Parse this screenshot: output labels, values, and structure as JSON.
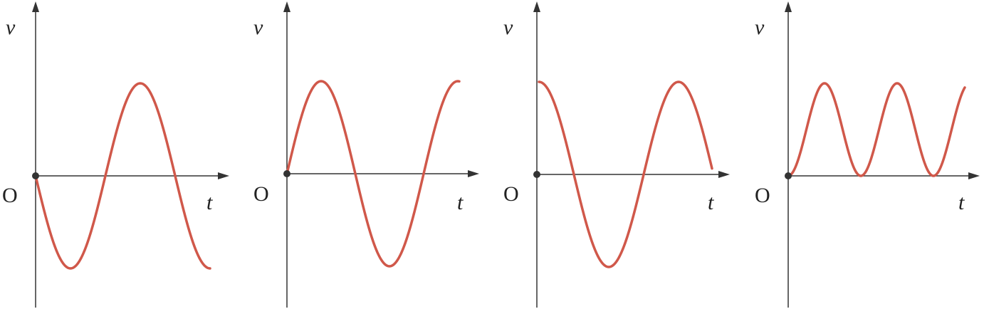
{
  "panels": [
    {
      "y_label": "v",
      "origin": "O",
      "x_label": "t"
    },
    {
      "y_label": "v",
      "origin": "O",
      "x_label": "t"
    },
    {
      "y_label": "v",
      "origin": "O",
      "x_label": "t"
    },
    {
      "y_label": "v",
      "origin": "O",
      "x_label": "t"
    }
  ]
}
